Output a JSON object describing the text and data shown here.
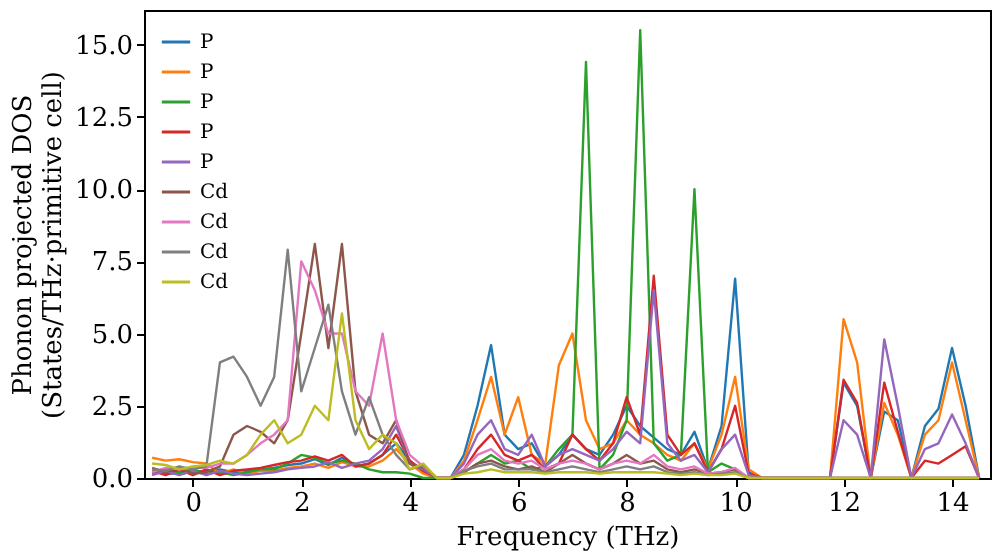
{
  "chart_data": {
    "type": "line",
    "xlabel": "Frequency (THz)",
    "ylabel": "Phonon projected DOS\n(States/THz·primitive cell)",
    "x": [
      -0.75,
      -0.5,
      -0.25,
      0,
      0.25,
      0.5,
      0.75,
      1.0,
      1.25,
      1.5,
      1.75,
      2.0,
      2.25,
      2.5,
      2.75,
      3.0,
      3.25,
      3.5,
      3.75,
      4.0,
      4.25,
      4.5,
      4.75,
      5.0,
      5.25,
      5.5,
      5.75,
      6.0,
      6.25,
      6.5,
      6.75,
      7.0,
      7.25,
      7.5,
      7.75,
      8.0,
      8.25,
      8.5,
      8.75,
      9.0,
      9.25,
      9.5,
      9.75,
      10.0,
      10.25,
      10.5,
      10.75,
      11.0,
      11.25,
      11.5,
      11.75,
      12.0,
      12.25,
      12.5,
      12.75,
      13.0,
      13.25,
      13.5,
      13.75,
      14.0,
      14.25,
      14.5
    ],
    "series": [
      {
        "name": "P",
        "color": "#1f77b4",
        "values": [
          0.2,
          0.15,
          0.15,
          0.2,
          0.25,
          0.3,
          0.2,
          0.25,
          0.3,
          0.35,
          0.45,
          0.5,
          0.65,
          0.45,
          0.7,
          0.4,
          0.5,
          0.8,
          1.2,
          0.6,
          0.2,
          0,
          0,
          0.8,
          2.5,
          4.6,
          1.5,
          1.0,
          1.2,
          0.4,
          0.8,
          1.5,
          1.0,
          0.8,
          1.5,
          2.5,
          1.8,
          1.4,
          1.0,
          0.8,
          1.6,
          0.3,
          1.8,
          6.9,
          0.2,
          0,
          0,
          0,
          0,
          0,
          0,
          3.3,
          2.5,
          0,
          2.3,
          2.0,
          0,
          1.8,
          2.4,
          4.5,
          2.5,
          0
        ]
      },
      {
        "name": "P",
        "color": "#ff7f0e",
        "values": [
          0.7,
          0.6,
          0.65,
          0.55,
          0.5,
          0.15,
          0.3,
          0.15,
          0.25,
          0.25,
          0.35,
          0.4,
          0.5,
          0.35,
          0.55,
          0.4,
          0.4,
          0.6,
          1.0,
          0.5,
          0.15,
          0,
          0,
          0.6,
          2.0,
          3.5,
          1.5,
          2.8,
          0.8,
          0.5,
          3.9,
          5.0,
          2.0,
          1.0,
          1.2,
          2.0,
          1.5,
          1.2,
          0.8,
          0.6,
          1.2,
          0.3,
          1.5,
          3.5,
          0.3,
          0,
          0,
          0,
          0,
          0,
          0,
          5.5,
          4.0,
          0,
          2.6,
          1.5,
          0,
          1.5,
          2.0,
          4.0,
          2.0,
          0
        ]
      },
      {
        "name": "P",
        "color": "#2ca02c",
        "values": [
          0.15,
          0.3,
          0.2,
          0.3,
          0.15,
          0.2,
          0.1,
          0.2,
          0.3,
          0.3,
          0.5,
          0.8,
          0.7,
          0.5,
          0.6,
          0.5,
          0.3,
          0.2,
          0.2,
          0.15,
          0,
          0,
          0,
          0.2,
          0.5,
          0.8,
          0.5,
          0.6,
          0.3,
          0.4,
          1.0,
          1.5,
          14.4,
          0.3,
          0.8,
          2.0,
          15.5,
          1.2,
          0.6,
          0.8,
          10.0,
          0.2,
          0.5,
          0.3,
          0,
          null,
          null,
          null,
          null,
          null,
          null,
          null,
          null,
          null,
          null,
          null,
          null,
          null,
          null,
          null,
          null,
          null
        ]
      },
      {
        "name": "P",
        "color": "#d62728",
        "values": [
          0.25,
          0.1,
          0.3,
          0.1,
          0.3,
          0.1,
          0.25,
          0.3,
          0.35,
          0.45,
          0.55,
          0.6,
          0.75,
          0.6,
          0.8,
          0.4,
          0.5,
          0.8,
          1.5,
          0.6,
          0.25,
          0,
          0,
          0.3,
          1.0,
          1.5,
          0.8,
          0.6,
          0.8,
          0.3,
          0.5,
          1.5,
          1.0,
          0.6,
          1.2,
          2.8,
          1.5,
          7.0,
          1.5,
          0.8,
          1.2,
          0.2,
          1.0,
          2.5,
          0.15,
          0,
          0,
          0,
          0,
          0,
          0,
          3.4,
          2.6,
          0,
          3.3,
          1.6,
          0,
          0.6,
          0.5,
          0.8,
          1.1,
          0
        ]
      },
      {
        "name": "P",
        "color": "#9467bd",
        "values": [
          0.1,
          0.25,
          0.1,
          0.25,
          0.1,
          0.25,
          0.15,
          0.1,
          0.15,
          0.2,
          0.3,
          0.35,
          0.4,
          0.55,
          0.35,
          0.5,
          0.6,
          1.0,
          1.8,
          0.5,
          0.3,
          0,
          0,
          0.5,
          1.5,
          2.0,
          1.0,
          0.8,
          1.5,
          0.4,
          0.8,
          1.0,
          0.8,
          0.6,
          1.0,
          1.6,
          1.2,
          6.5,
          1.2,
          0.6,
          0.8,
          0.2,
          1.0,
          1.5,
          0.1,
          0,
          0,
          0,
          0,
          0,
          0,
          2.0,
          1.5,
          0,
          4.8,
          2.5,
          0,
          1.0,
          1.2,
          2.2,
          1.2,
          0
        ]
      },
      {
        "name": "Cd",
        "color": "#8c564b",
        "values": [
          0.35,
          0.2,
          0.35,
          0.15,
          0.2,
          0.4,
          1.5,
          1.8,
          1.6,
          1.2,
          2.0,
          5.0,
          8.1,
          4.5,
          8.1,
          3.0,
          1.5,
          1.2,
          2.0,
          0.5,
          0.35,
          0,
          0,
          0.2,
          0.5,
          0.6,
          0.4,
          0.3,
          0.4,
          0.2,
          0.5,
          0.8,
          0.5,
          0.3,
          0.5,
          0.8,
          0.5,
          0.6,
          0.3,
          0.2,
          0.3,
          0.15,
          0.2,
          0.3,
          0,
          0,
          0,
          0,
          0,
          0,
          0,
          0,
          0,
          0,
          0,
          0,
          0,
          0,
          0,
          0,
          0,
          0
        ]
      },
      {
        "name": "Cd",
        "color": "#e377c2",
        "values": [
          0.2,
          0.35,
          0.3,
          0.35,
          0.35,
          0.5,
          0.5,
          0.8,
          1.2,
          1.5,
          2.0,
          7.5,
          6.5,
          5.0,
          5.0,
          3.0,
          2.5,
          5.0,
          2.0,
          0.8,
          0.4,
          0,
          0,
          0.3,
          0.8,
          1.0,
          0.6,
          0.5,
          0.6,
          0.3,
          0.5,
          0.6,
          0.5,
          0.3,
          0.5,
          0.6,
          0.5,
          0.8,
          0.4,
          0.3,
          0.4,
          0.15,
          0.2,
          0.35,
          0,
          0,
          0,
          0,
          0,
          0,
          0,
          0,
          0,
          0,
          0,
          0,
          0,
          0,
          0,
          0,
          0,
          0
        ]
      },
      {
        "name": "Cd",
        "color": "#7f7f7f",
        "values": [
          0.3,
          0.25,
          0.4,
          0.3,
          0.4,
          4.0,
          4.2,
          3.5,
          2.5,
          3.5,
          7.9,
          3.0,
          4.5,
          6.0,
          3.0,
          1.5,
          2.8,
          1.5,
          0.8,
          0.3,
          0.45,
          0,
          0,
          0.25,
          0.4,
          0.5,
          0.3,
          0.3,
          0.3,
          0.2,
          0.3,
          0.4,
          0.3,
          0.2,
          0.3,
          0.4,
          0.3,
          0.4,
          0.2,
          0.15,
          0.2,
          0.1,
          0.15,
          0.2,
          0,
          0,
          0,
          0,
          0,
          0,
          0,
          0,
          0,
          0,
          0,
          0,
          0,
          0,
          0,
          0,
          0,
          0
        ]
      },
      {
        "name": "Cd",
        "color": "#bcbd22",
        "values": [
          0.5,
          0.45,
          0.3,
          0.4,
          0.45,
          0.6,
          0.5,
          0.8,
          1.5,
          2.0,
          1.2,
          1.5,
          2.5,
          2.0,
          5.7,
          2.0,
          1.0,
          1.5,
          1.2,
          0.3,
          0.5,
          0,
          0,
          0.15,
          0.2,
          0.3,
          0.2,
          0.2,
          0.2,
          0.15,
          0.2,
          0.2,
          0.2,
          0.15,
          0.2,
          0.2,
          0.2,
          0.2,
          0.15,
          0.1,
          0.15,
          0.1,
          0.1,
          0.15,
          0,
          0,
          0,
          0,
          0,
          0,
          0,
          0,
          0,
          0,
          0,
          0,
          0,
          0,
          0,
          0,
          0,
          0
        ]
      }
    ],
    "xlim": [
      -0.9,
      14.7
    ],
    "xticks": [
      0,
      2,
      4,
      6,
      8,
      10,
      12,
      14
    ],
    "ylim": [
      0,
      16.2
    ],
    "yticks": [
      {
        "value": 0,
        "label": "0.0"
      },
      {
        "value": 2.5,
        "label": "2.5"
      },
      {
        "value": 5,
        "label": "5.0"
      },
      {
        "value": 7.5,
        "label": "7.5"
      },
      {
        "value": 10,
        "label": "10.0"
      },
      {
        "value": 12.5,
        "label": "12.5"
      },
      {
        "value": 15,
        "label": "15.0"
      }
    ],
    "legend": "top left",
    "grid": false,
    "marker": "none",
    "line_style": "solid"
  }
}
